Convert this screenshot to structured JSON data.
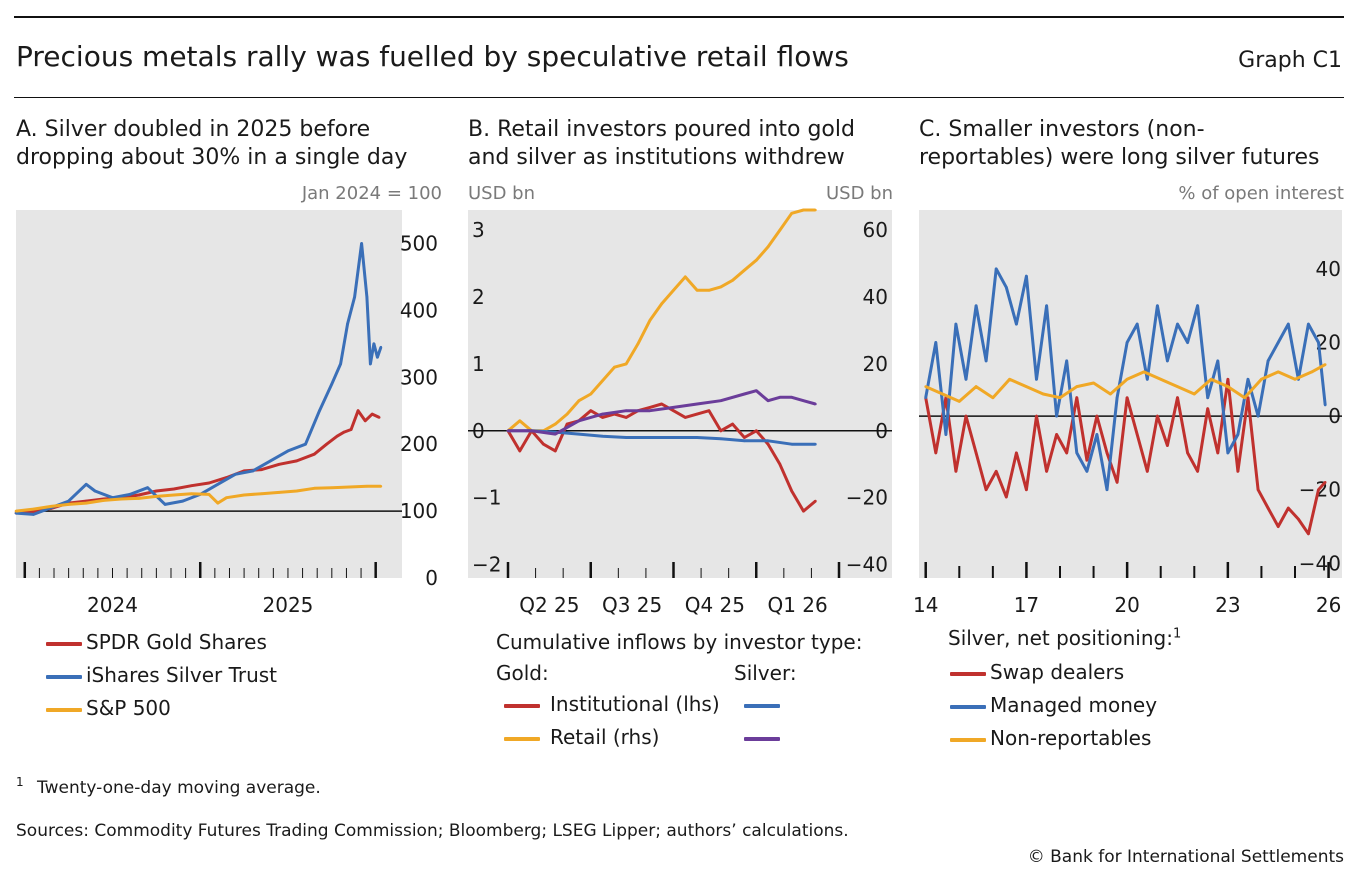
{
  "title": "Precious metals rally was fuelled by speculative retail flows",
  "graph_id": "Graph C1",
  "footnote_marker": "1",
  "footnote_text": "Twenty-one-day moving average.",
  "sources": "Sources: Commodity Futures Trading Commission; Bloomberg; LSEG Lipper; authors’ calculations.",
  "copyright": "© Bank for International Settlements",
  "colors": {
    "red": "#c0312e",
    "blue": "#3a6fb8",
    "orange": "#f0a826",
    "purple": "#6b3d9a",
    "plot_bg": "#e6e6e6"
  },
  "panelA": {
    "title_line1": "A. Silver doubled in 2025 before",
    "title_line2": "dropping about 30% in a single day",
    "unit": "Jan 2024 = 100",
    "legend": [
      {
        "label": "SPDR Gold Shares",
        "color": "#c0312e"
      },
      {
        "label": "iShares Silver Trust",
        "color": "#3a6fb8"
      },
      {
        "label": "S&P 500",
        "color": "#f0a826"
      }
    ]
  },
  "panelB": {
    "title_line1": "B. Retail investors poured into gold",
    "title_line2": "and silver as institutions withdrew",
    "unit_left": "USD bn",
    "unit_right": "USD bn",
    "legend_heading": "Cumulative inflows by investor type:",
    "gold_label": "Gold:",
    "silver_label": "Silver:",
    "legend_rows": [
      {
        "label": "Institutional (lhs)",
        "gold_color": "#c0312e",
        "silver_color": "#3a6fb8"
      },
      {
        "label": "Retail (rhs)",
        "gold_color": "#f0a826",
        "silver_color": "#6b3d9a"
      }
    ]
  },
  "panelC": {
    "title_line1": "C. Smaller investors (non-",
    "title_line2": "reportables) were long silver futures",
    "unit": "% of open interest",
    "legend_heading": "Silver, net positioning:",
    "legend_heading_sup": "1",
    "legend": [
      {
        "label": "Swap dealers",
        "color": "#c0312e"
      },
      {
        "label": "Managed money",
        "color": "#3a6fb8"
      },
      {
        "label": "Non-reportables",
        "color": "#f0a826"
      }
    ]
  },
  "chart_data": [
    {
      "type": "line",
      "title": "A. Silver doubled in 2025 before dropping about 30% in a single day",
      "ylabel": "Jan 2024 = 100",
      "ylim": [
        0,
        550
      ],
      "y_ticks": [
        0,
        100,
        200,
        300,
        400,
        500
      ],
      "baseline": 100,
      "xlim": [
        2023.95,
        2026.15
      ],
      "x_tick_labels": [
        {
          "label": "2024",
          "x": 2024.5
        },
        {
          "label": "2025",
          "x": 2025.5
        }
      ],
      "x_year_boundaries": [
        2025.0,
        2026.0
      ],
      "series": [
        {
          "name": "SPDR Gold Shares",
          "color": "#c0312e",
          "x": [
            2023.95,
            2024.05,
            2024.15,
            2024.25,
            2024.35,
            2024.45,
            2024.55,
            2024.65,
            2024.75,
            2024.85,
            2024.95,
            2025.05,
            2025.15,
            2025.25,
            2025.35,
            2025.45,
            2025.55,
            2025.65,
            2025.72,
            2025.78,
            2025.82,
            2025.86,
            2025.9,
            2025.94,
            2025.98,
            2026.02
          ],
          "y": [
            97,
            99,
            104,
            112,
            115,
            118,
            120,
            124,
            130,
            133,
            138,
            142,
            150,
            160,
            162,
            170,
            175,
            185,
            200,
            212,
            218,
            222,
            250,
            235,
            245,
            240
          ]
        },
        {
          "name": "iShares Silver Trust",
          "color": "#3a6fb8",
          "x": [
            2023.95,
            2024.05,
            2024.15,
            2024.25,
            2024.35,
            2024.4,
            2024.5,
            2024.6,
            2024.7,
            2024.8,
            2024.9,
            2025.0,
            2025.1,
            2025.2,
            2025.3,
            2025.4,
            2025.5,
            2025.6,
            2025.68,
            2025.75,
            2025.8,
            2025.84,
            2025.88,
            2025.92,
            2025.95,
            2025.97,
            2025.99,
            2026.01,
            2026.03
          ],
          "y": [
            97,
            95,
            105,
            115,
            140,
            130,
            120,
            125,
            135,
            110,
            115,
            125,
            140,
            155,
            160,
            175,
            190,
            200,
            250,
            290,
            320,
            380,
            420,
            500,
            420,
            320,
            350,
            330,
            345
          ]
        },
        {
          "name": "S&P 500",
          "color": "#f0a826",
          "x": [
            2023.95,
            2024.05,
            2024.15,
            2024.25,
            2024.35,
            2024.45,
            2024.55,
            2024.65,
            2024.75,
            2024.85,
            2024.95,
            2025.05,
            2025.1,
            2025.15,
            2025.25,
            2025.35,
            2025.45,
            2025.55,
            2025.65,
            2025.75,
            2025.85,
            2025.95,
            2026.03
          ],
          "y": [
            100,
            103,
            107,
            110,
            112,
            116,
            118,
            119,
            122,
            124,
            126,
            125,
            112,
            120,
            124,
            126,
            128,
            130,
            134,
            135,
            136,
            137,
            137
          ]
        }
      ]
    },
    {
      "type": "line",
      "title": "B. Retail investors poured into gold and silver as institutions withdrew",
      "left_axis": {
        "label": "USD bn",
        "ylim": [
          -2.2,
          3.3
        ],
        "ticks": [
          -2,
          -1,
          0,
          1,
          2,
          3
        ]
      },
      "right_axis": {
        "label": "USD bn",
        "ylim": [
          -44,
          66
        ],
        "ticks": [
          -40,
          -20,
          0,
          20,
          40,
          60
        ]
      },
      "baseline_lhs": 0,
      "x_tick_labels": [
        "Q2 25",
        "Q3 25",
        "Q4 25",
        "Q1 26"
      ],
      "xlim": [
        0,
        14
      ],
      "series": [
        {
          "name": "Gold – Institutional (lhs)",
          "axis": "left",
          "color": "#c0312e",
          "x": [
            0,
            0.5,
            1,
            1.5,
            2,
            2.5,
            3,
            3.5,
            4,
            4.5,
            5,
            5.5,
            6,
            6.5,
            7,
            7.5,
            8,
            8.5,
            9,
            9.5,
            10,
            10.5,
            11,
            11.5,
            12,
            12.5,
            13
          ],
          "y": [
            0,
            -0.3,
            0,
            -0.2,
            -0.3,
            0.1,
            0.15,
            0.3,
            0.2,
            0.25,
            0.2,
            0.3,
            0.35,
            0.4,
            0.3,
            0.2,
            0.25,
            0.3,
            0.0,
            0.1,
            -0.1,
            0.0,
            -0.2,
            -0.5,
            -0.9,
            -1.2,
            -1.05
          ]
        },
        {
          "name": "Gold – Retail (rhs)",
          "axis": "right",
          "color": "#f0a826",
          "x": [
            0,
            0.5,
            1,
            1.5,
            2,
            2.5,
            3,
            3.5,
            4,
            4.5,
            5,
            5.5,
            6,
            6.5,
            7,
            7.5,
            8,
            8.5,
            9,
            9.5,
            10,
            10.5,
            11,
            11.5,
            12,
            12.5,
            13
          ],
          "y": [
            0,
            3,
            0,
            0,
            2,
            5,
            9,
            11,
            15,
            19,
            20,
            26,
            33,
            38,
            42,
            46,
            42,
            42,
            43,
            45,
            48,
            51,
            55,
            60,
            65,
            66,
            66
          ]
        },
        {
          "name": "Silver – Institutional (lhs)",
          "axis": "left",
          "color": "#3a6fb8",
          "x": [
            0,
            1,
            2,
            3,
            4,
            5,
            6,
            7,
            8,
            9,
            10,
            11,
            12,
            13
          ],
          "y": [
            0,
            0,
            -0.02,
            -0.05,
            -0.08,
            -0.1,
            -0.1,
            -0.1,
            -0.1,
            -0.12,
            -0.15,
            -0.15,
            -0.2,
            -0.2
          ]
        },
        {
          "name": "Silver – Retail (rhs)",
          "axis": "right",
          "color": "#6b3d9a",
          "x": [
            0,
            1,
            2,
            3,
            4,
            5,
            6,
            7,
            8,
            9,
            10,
            10.5,
            11,
            11.5,
            12,
            12.5,
            13
          ],
          "y": [
            0,
            0,
            -1,
            3,
            5,
            6,
            6,
            7,
            8,
            9,
            11,
            12,
            9,
            10,
            10,
            9,
            8
          ]
        }
      ]
    },
    {
      "type": "line",
      "title": "C. Smaller investors (non-reportables) were long silver futures",
      "ylabel": "% of open interest",
      "ylim": [
        -44,
        56
      ],
      "y_ticks": [
        -40,
        -20,
        0,
        20,
        40
      ],
      "baseline": 0,
      "xlim": [
        2013.8,
        2026.4
      ],
      "x_tick_labels": [
        "14",
        "17",
        "20",
        "23",
        "26"
      ],
      "x_ticks_at": [
        2014,
        2017,
        2020,
        2023,
        2026
      ],
      "x_minor_years": [
        2015,
        2016,
        2018,
        2019,
        2021,
        2022,
        2024,
        2025
      ],
      "series": [
        {
          "name": "Swap dealers",
          "color": "#c0312e",
          "x": [
            2014,
            2014.3,
            2014.6,
            2014.9,
            2015.2,
            2015.5,
            2015.8,
            2016.1,
            2016.4,
            2016.7,
            2017,
            2017.3,
            2017.6,
            2017.9,
            2018.2,
            2018.5,
            2018.8,
            2019.1,
            2019.4,
            2019.7,
            2020,
            2020.3,
            2020.6,
            2020.9,
            2021.2,
            2021.5,
            2021.8,
            2022.1,
            2022.4,
            2022.7,
            2023,
            2023.3,
            2023.6,
            2023.9,
            2024.2,
            2024.5,
            2024.8,
            2025.1,
            2025.4,
            2025.7,
            2025.9
          ],
          "y": [
            5,
            -10,
            5,
            -15,
            0,
            -10,
            -20,
            -15,
            -22,
            -10,
            -20,
            0,
            -15,
            -5,
            -10,
            5,
            -12,
            0,
            -10,
            -18,
            5,
            -5,
            -15,
            0,
            -8,
            5,
            -10,
            -15,
            2,
            -10,
            10,
            -15,
            5,
            -20,
            -25,
            -30,
            -25,
            -28,
            -32,
            -20,
            -18
          ]
        },
        {
          "name": "Managed money",
          "color": "#3a6fb8",
          "x": [
            2014,
            2014.3,
            2014.6,
            2014.9,
            2015.2,
            2015.5,
            2015.8,
            2016.1,
            2016.4,
            2016.7,
            2017,
            2017.3,
            2017.6,
            2017.9,
            2018.2,
            2018.5,
            2018.8,
            2019.1,
            2019.4,
            2019.7,
            2020,
            2020.3,
            2020.6,
            2020.9,
            2021.2,
            2021.5,
            2021.8,
            2022.1,
            2022.4,
            2022.7,
            2023,
            2023.3,
            2023.6,
            2023.9,
            2024.2,
            2024.5,
            2024.8,
            2025.1,
            2025.4,
            2025.7,
            2025.9
          ],
          "y": [
            5,
            20,
            -5,
            25,
            10,
            30,
            15,
            40,
            35,
            25,
            38,
            10,
            30,
            0,
            15,
            -10,
            -15,
            -5,
            -20,
            5,
            20,
            25,
            10,
            30,
            15,
            25,
            20,
            30,
            5,
            15,
            -10,
            -5,
            10,
            0,
            15,
            20,
            25,
            10,
            25,
            20,
            3
          ]
        },
        {
          "name": "Non-reportables",
          "color": "#f0a826",
          "x": [
            2014,
            2014.5,
            2015,
            2015.5,
            2016,
            2016.5,
            2017,
            2017.5,
            2018,
            2018.5,
            2019,
            2019.5,
            2020,
            2020.5,
            2021,
            2021.5,
            2022,
            2022.5,
            2023,
            2023.5,
            2024,
            2024.5,
            2025,
            2025.5,
            2025.9
          ],
          "y": [
            8,
            6,
            4,
            8,
            5,
            10,
            8,
            6,
            5,
            8,
            9,
            6,
            10,
            12,
            10,
            8,
            6,
            10,
            8,
            5,
            10,
            12,
            10,
            12,
            14
          ]
        }
      ]
    }
  ]
}
